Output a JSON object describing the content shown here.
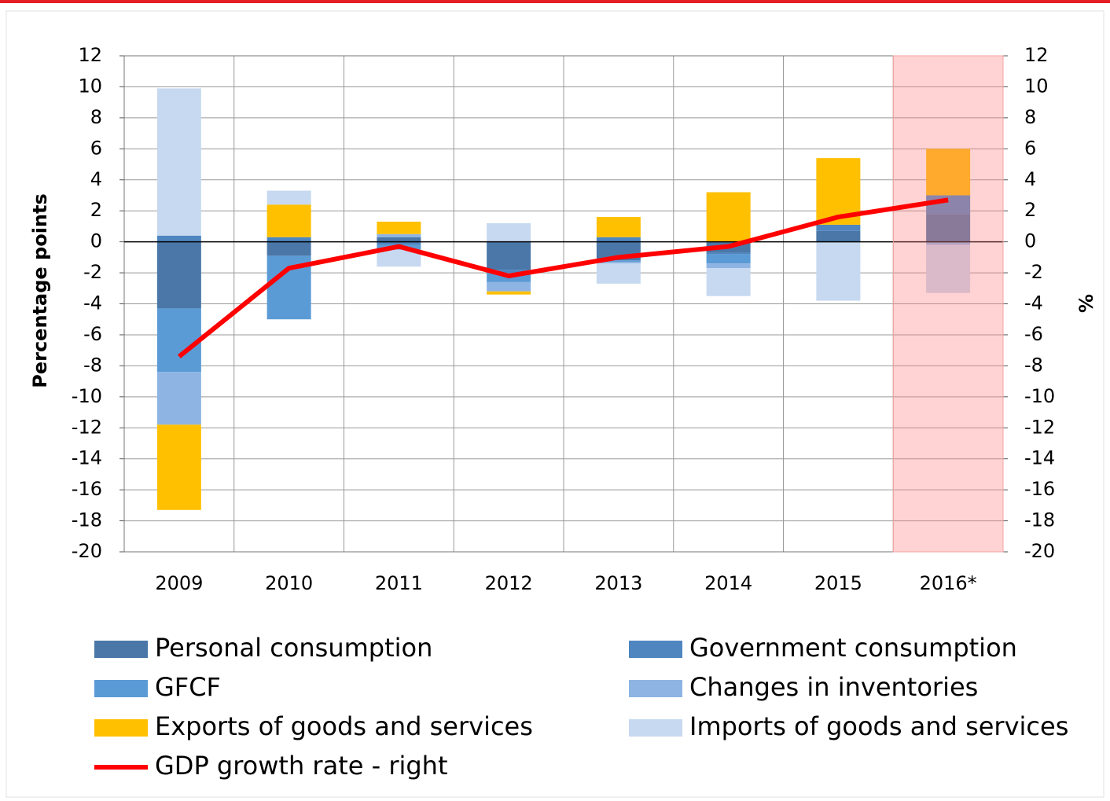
{
  "chart_data": {
    "type": "bar",
    "stacked": true,
    "ylabel": "Percentage points",
    "y2label": "%",
    "categories": [
      "2009",
      "2010",
      "2011",
      "2012",
      "2013",
      "2014",
      "2015",
      "2016*"
    ],
    "highlight": "2016*",
    "series": [
      {
        "name": "Personal consumption",
        "color": "#4a77a8",
        "values": [
          -4.3,
          -0.9,
          0.3,
          -1.8,
          -1.2,
          -0.7,
          0.7,
          1.8
        ]
      },
      {
        "name": "Government consumption",
        "color": "#4f86c0",
        "values": [
          0.4,
          0.3,
          -0.2,
          -0.2,
          0.3,
          -0.1,
          0.4,
          1.2
        ]
      },
      {
        "name": "GFCF",
        "color": "#5b9bd5",
        "values": [
          -4.1,
          -4.1,
          -0.3,
          -0.6,
          -0.1,
          -0.6,
          0,
          0
        ]
      },
      {
        "name": "Changes in inventories",
        "color": "#8eb4e3",
        "values": [
          -3.4,
          0,
          0.2,
          -0.6,
          -0.1,
          -0.3,
          0,
          -0.2
        ]
      },
      {
        "name": "Exports of goods and services",
        "color": "#ffc000",
        "values": [
          -5.5,
          2.1,
          0.8,
          -0.2,
          1.3,
          3.2,
          4.3,
          3.0
        ]
      },
      {
        "name": "Imports of goods and services",
        "color": "#c6d9f0",
        "values": [
          9.5,
          0.9,
          -1.1,
          1.2,
          -1.3,
          -1.8,
          -3.8,
          -3.1
        ]
      },
      {
        "name": "GDP growth rate - right",
        "color": "#ff0000",
        "type": "line",
        "axis": "y2",
        "values": [
          -7.4,
          -1.7,
          -0.3,
          -2.2,
          -1.0,
          -0.3,
          1.6,
          2.7
        ]
      }
    ],
    "ylim": [
      -20,
      12
    ],
    "yticks": [
      -20,
      -18,
      -16,
      -14,
      -12,
      -10,
      -8,
      -6,
      -4,
      -2,
      0,
      2,
      4,
      6,
      8,
      10,
      12
    ],
    "y2lim": [
      -20,
      12
    ],
    "y2ticks": [
      -20,
      -18,
      -16,
      -14,
      -12,
      -10,
      -8,
      -6,
      -4,
      -2,
      0,
      2,
      4,
      6,
      8,
      10,
      12
    ],
    "grid": true
  }
}
